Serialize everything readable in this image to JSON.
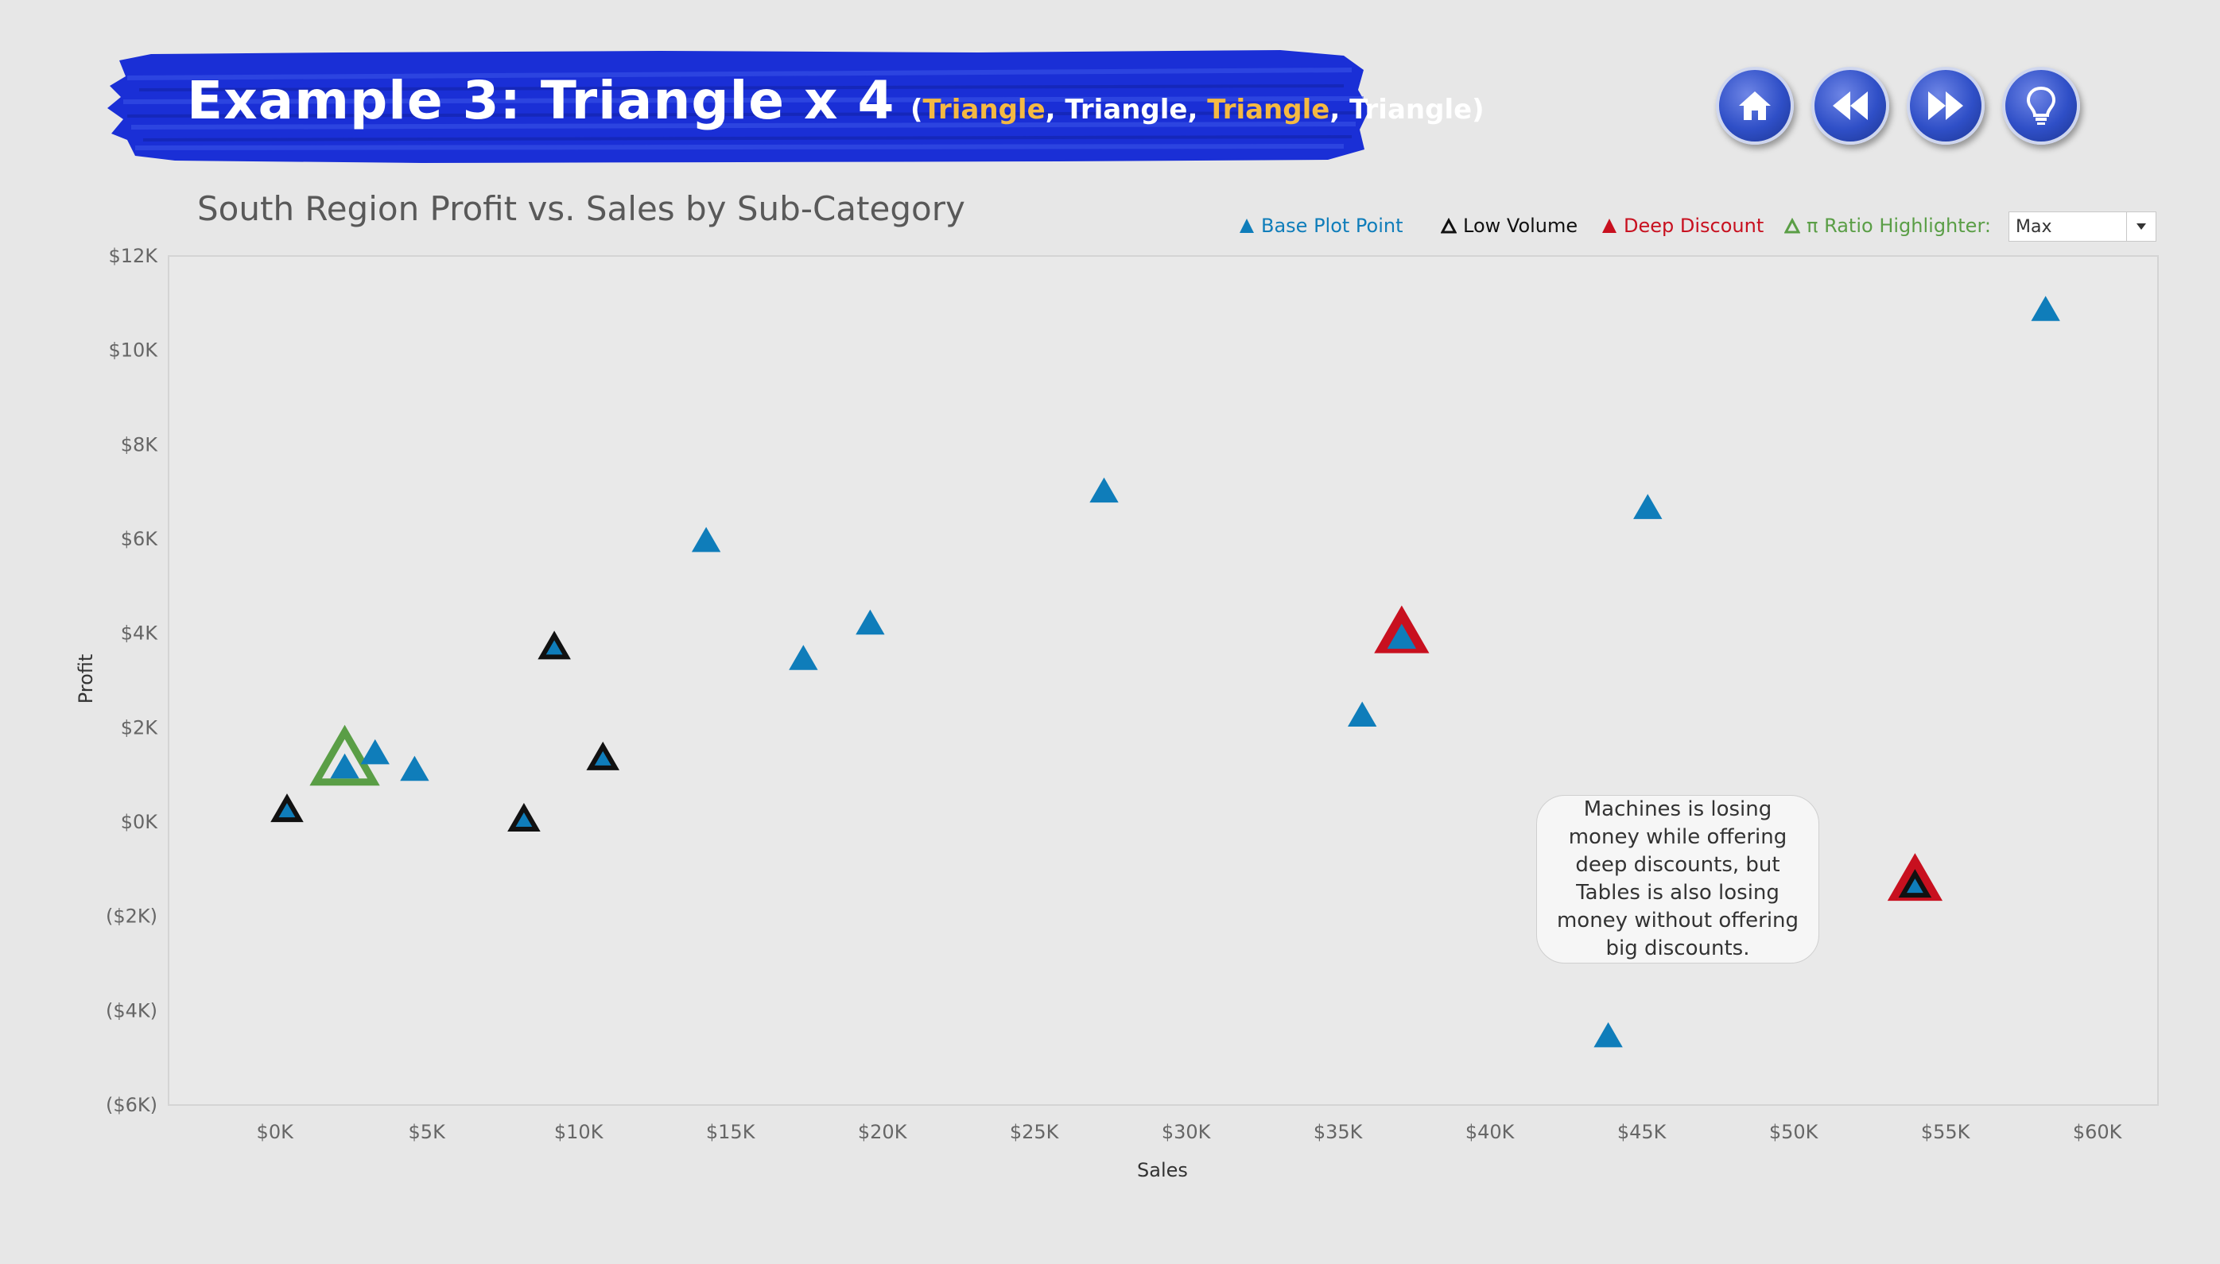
{
  "banner": {
    "title": "Example 3: Triangle x 4",
    "subtitle_parts": [
      {
        "text": "(",
        "highlight": false
      },
      {
        "text": "Triangle",
        "highlight": true
      },
      {
        "text": ", Triangle, ",
        "highlight": false
      },
      {
        "text": "Triangle",
        "highlight": true
      },
      {
        "text": ", Triangle)",
        "highlight": false
      }
    ],
    "colors": {
      "brush": "#1a2fd6",
      "highlight": "#f5b942"
    }
  },
  "nav": [
    {
      "name": "home",
      "icon": "home-icon"
    },
    {
      "name": "back",
      "icon": "rewind-icon"
    },
    {
      "name": "forward",
      "icon": "fast-forward-icon"
    },
    {
      "name": "hint",
      "icon": "lightbulb-icon"
    }
  ],
  "legend": {
    "base": {
      "label": "Base Plot Point",
      "color": "#0f7dba"
    },
    "low": {
      "label": "Low Volume",
      "color": "#111111"
    },
    "deep": {
      "label": "Deep Discount",
      "color": "#c8101f"
    },
    "ratio": {
      "label": "π Ratio Highlighter:",
      "color": "#5a9e46"
    },
    "dropdown_value": "Max"
  },
  "annotation": {
    "text": "Machines is losing money while offering deep discounts, but Tables is also losing money without offering big discounts."
  },
  "chart_data": {
    "type": "scatter",
    "title": "South Region Profit vs. Sales by Sub-Category",
    "xlabel": "Sales",
    "ylabel": "Profit",
    "xlim": [
      -3500,
      62000
    ],
    "ylim": [
      -6000,
      12000
    ],
    "x_ticks": [
      "$0K",
      "$5K",
      "$10K",
      "$15K",
      "$20K",
      "$25K",
      "$30K",
      "$35K",
      "$40K",
      "$45K",
      "$50K",
      "$55K",
      "$60K"
    ],
    "x_tick_values": [
      0,
      5000,
      10000,
      15000,
      20000,
      25000,
      30000,
      35000,
      40000,
      45000,
      50000,
      55000,
      60000
    ],
    "y_ticks": [
      "$12K",
      "$10K",
      "$8K",
      "$6K",
      "$4K",
      "$2K",
      "$0K",
      "($2K)",
      "($4K)",
      "($6K)"
    ],
    "y_tick_values": [
      12000,
      10000,
      8000,
      6000,
      4000,
      2000,
      0,
      -2000,
      -4000,
      -6000
    ],
    "grid": false,
    "legend_position": "top-right",
    "points": [
      {
        "x": 400,
        "y": 200,
        "low_volume": true,
        "deep_discount": false,
        "pi_highlight": false
      },
      {
        "x": 2300,
        "y": 1100,
        "low_volume": false,
        "deep_discount": false,
        "pi_highlight": true
      },
      {
        "x": 3300,
        "y": 1400,
        "low_volume": false,
        "deep_discount": false,
        "pi_highlight": false
      },
      {
        "x": 4600,
        "y": 1050,
        "low_volume": false,
        "deep_discount": false,
        "pi_highlight": false
      },
      {
        "x": 8200,
        "y": 0,
        "low_volume": true,
        "deep_discount": false,
        "pi_highlight": false
      },
      {
        "x": 9200,
        "y": 3650,
        "low_volume": true,
        "deep_discount": false,
        "pi_highlight": false
      },
      {
        "x": 10800,
        "y": 1300,
        "low_volume": true,
        "deep_discount": false,
        "pi_highlight": false
      },
      {
        "x": 14200,
        "y": 5900,
        "low_volume": false,
        "deep_discount": false,
        "pi_highlight": false
      },
      {
        "x": 17400,
        "y": 3400,
        "low_volume": false,
        "deep_discount": false,
        "pi_highlight": false
      },
      {
        "x": 19600,
        "y": 4150,
        "low_volume": false,
        "deep_discount": false,
        "pi_highlight": false
      },
      {
        "x": 27300,
        "y": 6950,
        "low_volume": false,
        "deep_discount": false,
        "pi_highlight": false
      },
      {
        "x": 35800,
        "y": 2200,
        "low_volume": false,
        "deep_discount": false,
        "pi_highlight": false
      },
      {
        "x": 37100,
        "y": 3850,
        "low_volume": false,
        "deep_discount": true,
        "pi_highlight": false
      },
      {
        "x": 43900,
        "y": -4600,
        "low_volume": false,
        "deep_discount": false,
        "pi_highlight": false
      },
      {
        "x": 45200,
        "y": 6600,
        "low_volume": false,
        "deep_discount": false,
        "pi_highlight": false
      },
      {
        "x": 54000,
        "y": -1400,
        "low_volume": true,
        "deep_discount": true,
        "pi_highlight": false
      },
      {
        "x": 58300,
        "y": 10800,
        "low_volume": false,
        "deep_discount": false,
        "pi_highlight": false
      }
    ]
  }
}
